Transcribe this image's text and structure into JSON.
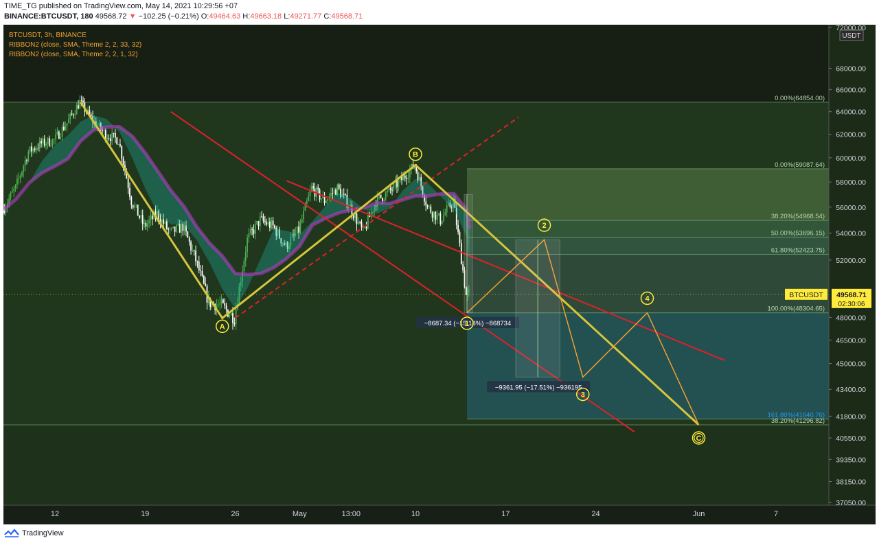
{
  "header": {
    "line1": "TIME_TG published on TradingView.com, May 14, 2021 10:29:56 +07",
    "symbol": "BINANCE:BTCUSDT, 180",
    "price": "49568.72",
    "change": "−102.25 (−0.21%)",
    "o_label": "O:",
    "o": "49464.63",
    "h_label": "H:",
    "h": "49663.18",
    "l_label": "L:",
    "l": "49271.77",
    "c_label": "C:",
    "c": "49568.71"
  },
  "legend": [
    "BTCUSDT, 3h, BINANCE",
    "RIBBON2 (close, SMA, Theme 2, 2, 33, 32)",
    "RIBBON2 (close, SMA, Theme 2, 2, 1, 32)"
  ],
  "footer": {
    "brand": "TradingView"
  },
  "colors": {
    "background": "#1c2a18",
    "up": "#4caf50",
    "down": "#ffffff",
    "wave": "#d7c63c",
    "projection": "#f0a030",
    "channel": "#e0202a",
    "ribbon_fast": "#1bb0a0",
    "ribbon_slow": "#b43cc8",
    "label_badge": "#ffeb3b"
  },
  "chart_data": {
    "type": "candlestick",
    "symbol": "BTCUSDT",
    "timeframe": "3h",
    "currency": "USDT",
    "ylim": [
      37050,
      72000
    ],
    "y_ticks": [
      72000,
      68000,
      66000,
      64000,
      62000,
      60000,
      58000,
      56000,
      54000,
      52000,
      48000,
      46500,
      45000,
      43400,
      41800,
      40550,
      39350,
      38150,
      37050
    ],
    "x_ticks": [
      "12",
      "19",
      "26",
      "May",
      "13:00",
      "10",
      "17",
      "24",
      "Jun",
      "7"
    ],
    "last_price": {
      "label": "BTCUSDT",
      "value": "49568.71",
      "countdown": "02:30:06",
      "numeric": 49568.71
    },
    "fib_levels": [
      {
        "label": "0.00%(64854.00)",
        "price": 64854
      },
      {
        "label": "0.00%(59087.64)",
        "price": 59087.64
      },
      {
        "label": "38.20%(54968.54)",
        "price": 54968.54
      },
      {
        "label": "50.00%(53696.15)",
        "price": 53696.15
      },
      {
        "label": "61.80%(52423.75)",
        "price": 52423.75
      },
      {
        "label": "100.00%(48304.65)",
        "price": 48304.65
      },
      {
        "label": "161.80%(41640.76)",
        "price": 41640.76
      },
      {
        "label": "38.20%(41296.82)",
        "price": 41296.82
      }
    ],
    "wave_labels": [
      {
        "label": "A",
        "style": "circle",
        "date": "Apr 25",
        "price": 47400
      },
      {
        "label": "B",
        "style": "circle",
        "date": "May 10",
        "price": 60300
      },
      {
        "label": "1",
        "style": "circle",
        "date": "May 14",
        "price": 47600
      },
      {
        "label": "2",
        "style": "circle",
        "date": "May 20",
        "price": 54600
      },
      {
        "label": "3",
        "style": "circle",
        "date": "May 23",
        "price": 43100
      },
      {
        "label": "4",
        "style": "circle",
        "date": "May 28",
        "price": 49300
      },
      {
        "label": "C",
        "style": "double-circle",
        "date": "Jun 1",
        "price": 40550
      }
    ],
    "measurements": [
      {
        "label": "−8687.34 (−15.18%) −868734",
        "from": 57000,
        "to": 48300
      },
      {
        "label": "−9361.95 (−17.51%) −936195",
        "from": 53500,
        "to": 44150
      }
    ],
    "wave_path_main": [
      {
        "date": "Apr 14",
        "price": 64854
      },
      {
        "date": "Apr 25",
        "price": 47950
      },
      {
        "date": "May 10",
        "price": 59400
      },
      {
        "date": "Jun 1",
        "price": 41300
      }
    ],
    "projection_path": [
      {
        "date": "May 14",
        "price": 48300
      },
      {
        "date": "May 20",
        "price": 53500
      },
      {
        "date": "May 23",
        "price": 44150
      },
      {
        "date": "May 28",
        "price": 48300
      },
      {
        "date": "Jun 1",
        "price": 41300
      }
    ]
  }
}
